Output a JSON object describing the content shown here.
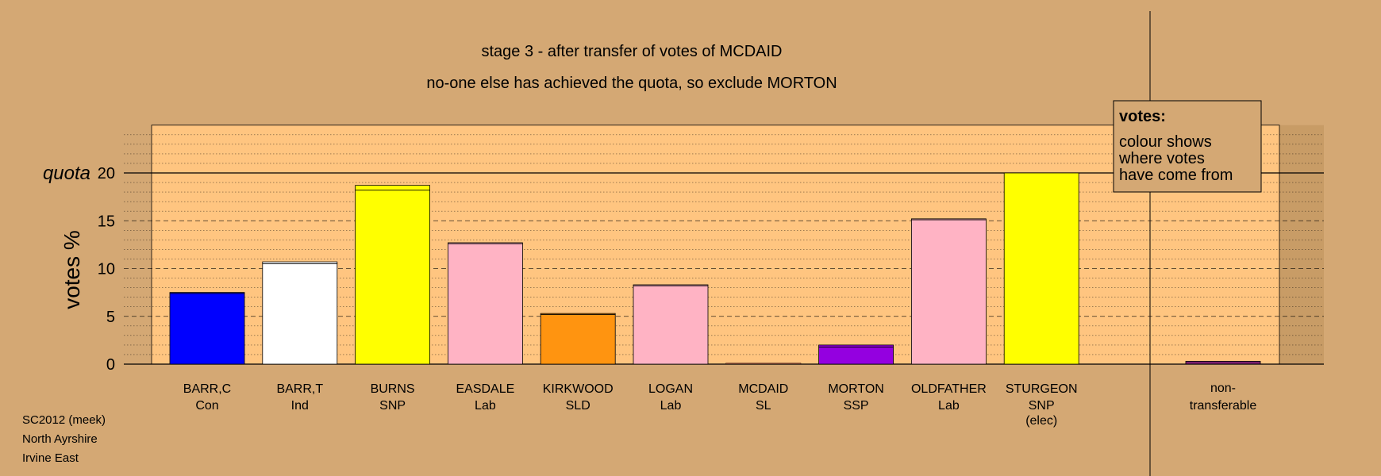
{
  "chart_data": {
    "type": "bar",
    "title": "stage 3 - after transfer of votes of MCDAID",
    "subtitle": "no-one else has achieved the quota, so exclude MORTON",
    "ylabel": "votes %",
    "quota_label": "quota",
    "quota": 20,
    "ylim": [
      0,
      25
    ],
    "yticks": [
      0,
      5,
      10,
      15,
      20
    ],
    "categories": [
      {
        "name": "BARR,C",
        "party": "Con",
        "extra": ""
      },
      {
        "name": "BARR,T",
        "party": "Ind",
        "extra": ""
      },
      {
        "name": "BURNS",
        "party": "SNP",
        "extra": ""
      },
      {
        "name": "EASDALE",
        "party": "Lab",
        "extra": ""
      },
      {
        "name": "KIRKWOOD",
        "party": "SLD",
        "extra": ""
      },
      {
        "name": "LOGAN",
        "party": "Lab",
        "extra": ""
      },
      {
        "name": "MCDAID",
        "party": "SL",
        "extra": ""
      },
      {
        "name": "MORTON",
        "party": "SSP",
        "extra": ""
      },
      {
        "name": "OLDFATHER",
        "party": "Lab",
        "extra": ""
      },
      {
        "name": "STURGEON",
        "party": "SNP",
        "extra": "(elec)"
      }
    ],
    "values": [
      7.5,
      10.7,
      18.7,
      12.7,
      5.3,
      8.3,
      0.1,
      2.0,
      15.2,
      20.0
    ],
    "transfer_values": [
      0.1,
      0.2,
      0.5,
      0.1,
      0.1,
      0.1,
      0.0,
      0.2,
      0.1,
      0.0
    ],
    "colors": [
      "#0000ff",
      "#ffffff",
      "#ffff00",
      "#ffb3c4",
      "#ff9410",
      "#ffb3c4",
      "#6b3a2a",
      "#9400e0",
      "#ffb3c4",
      "#ffff00"
    ],
    "nontransferable": {
      "label_line1": "non-",
      "label_line2": "transferable",
      "value": 0.3,
      "color": "#7a1f6e"
    },
    "grid": true,
    "legend": {
      "title": "votes:",
      "lines": [
        "colour shows",
        "where votes",
        "have come from"
      ]
    }
  },
  "footer": {
    "line1": "SC2012 (meek)",
    "line2": "North Ayrshire",
    "line3": "Irvine East"
  }
}
